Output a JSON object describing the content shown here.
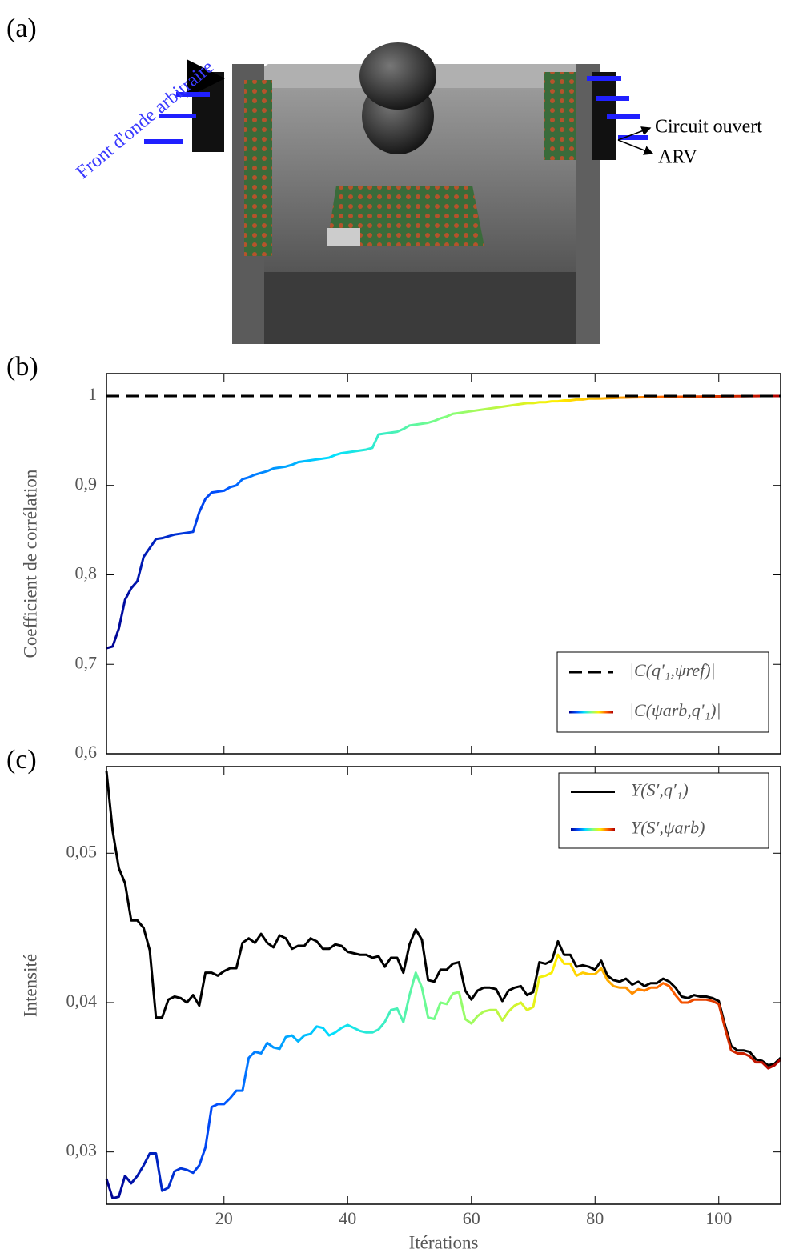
{
  "panel_a": {
    "label": "(a)",
    "annotations": [
      "Front d'onde arbitraire",
      "Circuit ouvert",
      "ARV"
    ]
  },
  "chart_data": [
    {
      "type": "line",
      "label": "(b)",
      "ylabel": "Coefficient de corrélation",
      "x": [
        1,
        2,
        3,
        4,
        5,
        6,
        7,
        8,
        9,
        10,
        11,
        12,
        13,
        14,
        15,
        16,
        17,
        18,
        19,
        20,
        21,
        22,
        23,
        24,
        25,
        26,
        27,
        28,
        29,
        30,
        31,
        32,
        33,
        34,
        35,
        36,
        37,
        38,
        39,
        40,
        41,
        42,
        43,
        44,
        45,
        46,
        47,
        48,
        49,
        50,
        51,
        52,
        53,
        54,
        55,
        56,
        57,
        58,
        59,
        60,
        61,
        62,
        63,
        64,
        65,
        66,
        67,
        68,
        69,
        70,
        71,
        72,
        73,
        74,
        75,
        76,
        77,
        78,
        79,
        80,
        81,
        82,
        83,
        84,
        85,
        86,
        87,
        88,
        89,
        90,
        91,
        92,
        93,
        94,
        95,
        96,
        97,
        98,
        99,
        100,
        101,
        102,
        103,
        104,
        105,
        106,
        107,
        108,
        109,
        110
      ],
      "reference": {
        "name": "|C(q'₁,ψref)|",
        "value": 1,
        "color": "#000000"
      },
      "series": [
        {
          "name": "|C(ψarb,q'₁)|",
          "colors": [
            "#00008f",
            "#0050ff",
            "#00dfff",
            "#80ff80",
            "#ffef00",
            "#ff6000",
            "#b00000"
          ],
          "values": [
            0.718,
            0.72,
            0.74,
            0.772,
            0.785,
            0.793,
            0.82,
            0.83,
            0.84,
            0.841,
            0.843,
            0.845,
            0.846,
            0.847,
            0.848,
            0.87,
            0.885,
            0.892,
            0.893,
            0.894,
            0.898,
            0.9,
            0.907,
            0.909,
            0.912,
            0.914,
            0.916,
            0.919,
            0.92,
            0.921,
            0.923,
            0.926,
            0.927,
            0.928,
            0.929,
            0.93,
            0.931,
            0.934,
            0.936,
            0.937,
            0.938,
            0.939,
            0.94,
            0.942,
            0.957,
            0.958,
            0.959,
            0.96,
            0.963,
            0.967,
            0.968,
            0.969,
            0.97,
            0.972,
            0.975,
            0.977,
            0.98,
            0.981,
            0.982,
            0.983,
            0.984,
            0.985,
            0.986,
            0.987,
            0.988,
            0.989,
            0.99,
            0.991,
            0.992,
            0.992,
            0.993,
            0.993,
            0.994,
            0.994,
            0.995,
            0.995,
            0.996,
            0.996,
            0.997,
            0.997,
            0.9972,
            0.9975,
            0.9977,
            0.998,
            0.9982,
            0.9984,
            0.9985,
            0.9986,
            0.9987,
            0.9988,
            0.9989,
            0.999,
            0.999,
            0.9991,
            0.9992,
            0.9993,
            0.9993,
            0.9994,
            0.9995,
            0.9995,
            0.9996,
            0.9996,
            0.9997,
            0.9997,
            0.9998,
            0.9998,
            0.9999,
            0.9999,
            1,
            1
          ]
        }
      ],
      "xlim": [
        1,
        110
      ],
      "xticks": [
        20,
        40,
        60,
        80,
        100
      ],
      "ylim": [
        0.6,
        1.025
      ],
      "yticks": [
        {
          "value": 0.6,
          "label": "0,6"
        },
        {
          "value": 0.7,
          "label": "0,7"
        },
        {
          "value": 0.8,
          "label": "0,8"
        },
        {
          "value": 0.9,
          "label": "0,9"
        },
        1
      ]
    },
    {
      "type": "line",
      "label": "(c)",
      "ylabel": "Intensité",
      "xlabel": "Itérations",
      "x": [
        1,
        2,
        3,
        4,
        5,
        6,
        7,
        8,
        9,
        10,
        11,
        12,
        13,
        14,
        15,
        16,
        17,
        18,
        19,
        20,
        21,
        22,
        23,
        24,
        25,
        26,
        27,
        28,
        29,
        30,
        31,
        32,
        33,
        34,
        35,
        36,
        37,
        38,
        39,
        40,
        41,
        42,
        43,
        44,
        45,
        46,
        47,
        48,
        49,
        50,
        51,
        52,
        53,
        54,
        55,
        56,
        57,
        58,
        59,
        60,
        61,
        62,
        63,
        64,
        65,
        66,
        67,
        68,
        69,
        70,
        71,
        72,
        73,
        74,
        75,
        76,
        77,
        78,
        79,
        80,
        81,
        82,
        83,
        84,
        85,
        86,
        87,
        88,
        89,
        90,
        91,
        92,
        93,
        94,
        95,
        96,
        97,
        98,
        99,
        100,
        101,
        102,
        103,
        104,
        105,
        106,
        107,
        108,
        109,
        110
      ],
      "series": [
        {
          "name": "Y(S′,q′₁)",
          "color": "#000000",
          "values": [
            0.0555,
            0.0515,
            0.049,
            0.048,
            0.0455,
            0.0455,
            0.045,
            0.0435,
            0.039,
            0.039,
            0.0402,
            0.0404,
            0.0403,
            0.04,
            0.0405,
            0.0398,
            0.042,
            0.042,
            0.0418,
            0.0421,
            0.0423,
            0.0423,
            0.044,
            0.0443,
            0.044,
            0.0446,
            0.044,
            0.0437,
            0.0445,
            0.0443,
            0.0436,
            0.0438,
            0.0438,
            0.0443,
            0.0441,
            0.0436,
            0.0436,
            0.0439,
            0.0438,
            0.0434,
            0.0433,
            0.0432,
            0.0432,
            0.043,
            0.0431,
            0.0424,
            0.043,
            0.043,
            0.042,
            0.0439,
            0.0449,
            0.0442,
            0.0415,
            0.0414,
            0.0422,
            0.0422,
            0.0426,
            0.0427,
            0.0408,
            0.0402,
            0.0408,
            0.041,
            0.041,
            0.0409,
            0.0401,
            0.0408,
            0.041,
            0.0411,
            0.0405,
            0.0407,
            0.0427,
            0.0426,
            0.0428,
            0.0441,
            0.0432,
            0.0432,
            0.0424,
            0.0425,
            0.0424,
            0.0422,
            0.0428,
            0.0418,
            0.0415,
            0.0414,
            0.0416,
            0.0412,
            0.0414,
            0.0411,
            0.0413,
            0.0413,
            0.0416,
            0.0414,
            0.041,
            0.0404,
            0.0403,
            0.0405,
            0.0404,
            0.0404,
            0.0403,
            0.0401,
            0.0385,
            0.0371,
            0.0368,
            0.0368,
            0.0367,
            0.0362,
            0.0361,
            0.0358,
            0.0359,
            0.0363
          ]
        },
        {
          "name": "Y(S′,ψarb)",
          "colors": [
            "#00008f",
            "#0050ff",
            "#00dfff",
            "#80ff80",
            "#ffef00",
            "#ff6000",
            "#b00000"
          ],
          "values": [
            0.0282,
            0.0269,
            0.027,
            0.0284,
            0.0279,
            0.0284,
            0.0291,
            0.0299,
            0.0299,
            0.0274,
            0.0276,
            0.0287,
            0.0289,
            0.0288,
            0.0286,
            0.0291,
            0.0303,
            0.033,
            0.0332,
            0.0332,
            0.0336,
            0.0341,
            0.0341,
            0.0363,
            0.0367,
            0.0366,
            0.0373,
            0.037,
            0.0369,
            0.0377,
            0.0378,
            0.0374,
            0.0378,
            0.0379,
            0.0384,
            0.0383,
            0.0378,
            0.038,
            0.0383,
            0.0385,
            0.0383,
            0.0381,
            0.038,
            0.038,
            0.0382,
            0.0387,
            0.0395,
            0.0396,
            0.0387,
            0.0405,
            0.042,
            0.041,
            0.039,
            0.0389,
            0.04,
            0.0399,
            0.0406,
            0.0407,
            0.0389,
            0.0386,
            0.0391,
            0.0394,
            0.0395,
            0.0395,
            0.0388,
            0.0394,
            0.0398,
            0.04,
            0.0395,
            0.0397,
            0.0417,
            0.0418,
            0.042,
            0.0432,
            0.0426,
            0.0426,
            0.0418,
            0.042,
            0.0419,
            0.0419,
            0.0423,
            0.0415,
            0.0411,
            0.041,
            0.041,
            0.0406,
            0.0409,
            0.0408,
            0.041,
            0.041,
            0.0413,
            0.0411,
            0.0405,
            0.04,
            0.04,
            0.0402,
            0.0402,
            0.0402,
            0.0401,
            0.0399,
            0.0383,
            0.0368,
            0.0366,
            0.0366,
            0.0364,
            0.036,
            0.036,
            0.0356,
            0.0358,
            0.0362
          ]
        }
      ],
      "xlim": [
        1,
        110
      ],
      "xticks": [
        20,
        40,
        60,
        80,
        100
      ],
      "ylim": [
        0.0265,
        0.0558
      ],
      "yticks": [
        {
          "value": 0.03,
          "label": "0,03"
        },
        {
          "value": 0.04,
          "label": "0,04"
        },
        {
          "value": 0.05,
          "label": "0,05"
        }
      ]
    }
  ]
}
